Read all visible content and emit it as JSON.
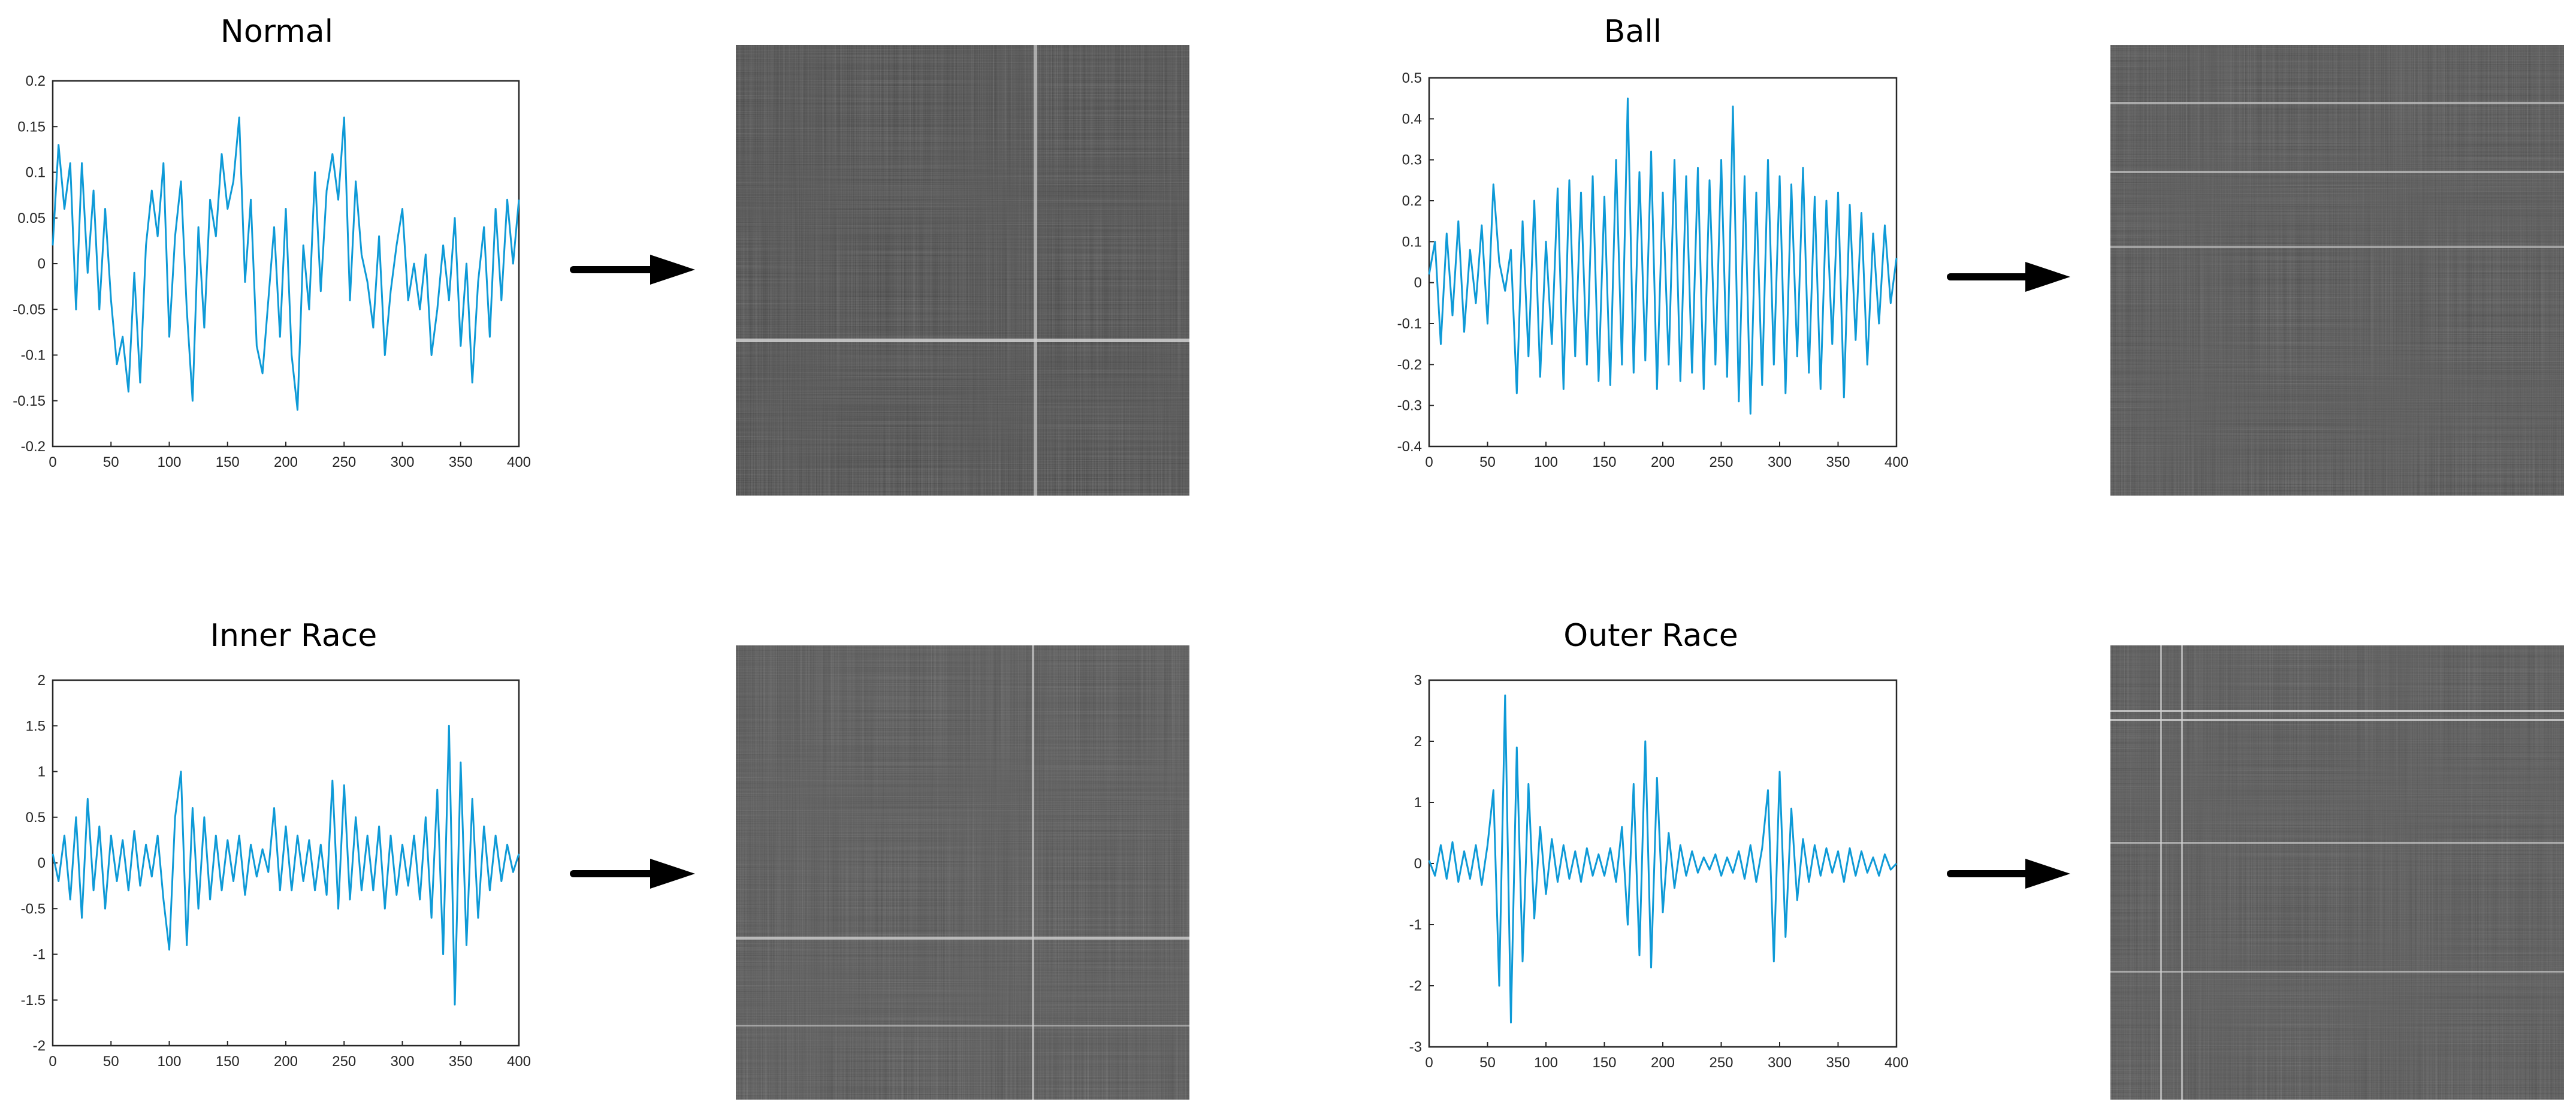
{
  "chart_data": [
    {
      "type": "line",
      "title": "Normal",
      "xlim": [
        0,
        400
      ],
      "ylim": [
        -0.2,
        0.2
      ],
      "xticks": [
        "0",
        "50",
        "100",
        "150",
        "200",
        "250",
        "300",
        "350",
        "400"
      ],
      "yticks": [
        "0.2",
        "0.15",
        "0.1",
        "0.05",
        "0",
        "-0.05",
        "-0.1",
        "-0.15",
        "-0.2"
      ],
      "grid": false,
      "series": [
        {
          "color": "#0e9ad7",
          "x": [
            0,
            5,
            10,
            15,
            20,
            25,
            30,
            35,
            40,
            45,
            50,
            55,
            60,
            65,
            70,
            75,
            80,
            85,
            90,
            95,
            100,
            105,
            110,
            115,
            120,
            125,
            130,
            135,
            140,
            145,
            150,
            155,
            160,
            165,
            170,
            175,
            180,
            185,
            190,
            195,
            200,
            205,
            210,
            215,
            220,
            225,
            230,
            235,
            240,
            245,
            250,
            255,
            260,
            265,
            270,
            275,
            280,
            285,
            290,
            295,
            300,
            305,
            310,
            315,
            320,
            325,
            330,
            335,
            340,
            345,
            350,
            355,
            360,
            365,
            370,
            375,
            380,
            385,
            390,
            395,
            400
          ],
          "y": [
            0.02,
            0.13,
            0.06,
            0.11,
            -0.05,
            0.11,
            -0.01,
            0.08,
            -0.05,
            0.06,
            -0.04,
            -0.11,
            -0.08,
            -0.14,
            -0.01,
            -0.13,
            0.02,
            0.08,
            0.03,
            0.11,
            -0.08,
            0.03,
            0.09,
            -0.05,
            -0.15,
            0.04,
            -0.07,
            0.07,
            0.03,
            0.12,
            0.06,
            0.09,
            0.16,
            -0.02,
            0.07,
            -0.09,
            -0.12,
            -0.04,
            0.04,
            -0.08,
            0.06,
            -0.1,
            -0.16,
            0.02,
            -0.05,
            0.1,
            -0.03,
            0.08,
            0.12,
            0.07,
            0.16,
            -0.04,
            0.09,
            0.01,
            -0.02,
            -0.07,
            0.03,
            -0.1,
            -0.03,
            0.02,
            0.06,
            -0.04,
            0.0,
            -0.05,
            0.01,
            -0.1,
            -0.05,
            0.02,
            -0.04,
            0.05,
            -0.09,
            0.0,
            -0.13,
            -0.02,
            0.04,
            -0.08,
            0.06,
            -0.04,
            0.07,
            0.0,
            0.07
          ]
        }
      ]
    },
    {
      "type": "line",
      "title": "Ball",
      "xlim": [
        0,
        400
      ],
      "ylim": [
        -0.4,
        0.5
      ],
      "xticks": [
        "0",
        "50",
        "100",
        "150",
        "200",
        "250",
        "300",
        "350",
        "400"
      ],
      "yticks": [
        "0.5",
        "0.4",
        "0.3",
        "0.2",
        "0.1",
        "0",
        "-0.1",
        "-0.2",
        "-0.3",
        "-0.4"
      ],
      "grid": false,
      "series": [
        {
          "color": "#0e9ad7",
          "x": [
            0,
            5,
            10,
            15,
            20,
            25,
            30,
            35,
            40,
            45,
            50,
            55,
            60,
            65,
            70,
            75,
            80,
            85,
            90,
            95,
            100,
            105,
            110,
            115,
            120,
            125,
            130,
            135,
            140,
            145,
            150,
            155,
            160,
            165,
            170,
            175,
            180,
            185,
            190,
            195,
            200,
            205,
            210,
            215,
            220,
            225,
            230,
            235,
            240,
            245,
            250,
            255,
            260,
            265,
            270,
            275,
            280,
            285,
            290,
            295,
            300,
            305,
            310,
            315,
            320,
            325,
            330,
            335,
            340,
            345,
            350,
            355,
            360,
            365,
            370,
            375,
            380,
            385,
            390,
            395,
            400
          ],
          "y": [
            0.02,
            0.1,
            -0.15,
            0.12,
            -0.08,
            0.15,
            -0.12,
            0.08,
            -0.05,
            0.14,
            -0.1,
            0.24,
            0.05,
            -0.02,
            0.08,
            -0.27,
            0.15,
            -0.18,
            0.2,
            -0.23,
            0.1,
            -0.15,
            0.23,
            -0.26,
            0.25,
            -0.18,
            0.22,
            -0.2,
            0.26,
            -0.24,
            0.21,
            -0.25,
            0.3,
            -0.2,
            0.45,
            -0.22,
            0.27,
            -0.19,
            0.32,
            -0.26,
            0.22,
            -0.2,
            0.3,
            -0.24,
            0.26,
            -0.22,
            0.28,
            -0.26,
            0.25,
            -0.2,
            0.3,
            -0.23,
            0.43,
            -0.29,
            0.26,
            -0.32,
            0.22,
            -0.25,
            0.3,
            -0.2,
            0.26,
            -0.27,
            0.24,
            -0.18,
            0.28,
            -0.22,
            0.21,
            -0.26,
            0.2,
            -0.15,
            0.22,
            -0.28,
            0.19,
            -0.14,
            0.17,
            -0.2,
            0.12,
            -0.1,
            0.14,
            -0.05,
            0.06
          ]
        }
      ]
    },
    {
      "type": "line",
      "title": "Inner Race",
      "xlim": [
        0,
        400
      ],
      "ylim": [
        -2,
        2
      ],
      "xticks": [
        "0",
        "50",
        "100",
        "150",
        "200",
        "250",
        "300",
        "350",
        "400"
      ],
      "yticks": [
        "2",
        "1.5",
        "1",
        "0.5",
        "0",
        "-0.5",
        "-1",
        "-1.5",
        "-2"
      ],
      "grid": false,
      "series": [
        {
          "color": "#0e9ad7",
          "x": [
            0,
            5,
            10,
            15,
            20,
            25,
            30,
            35,
            40,
            45,
            50,
            55,
            60,
            65,
            70,
            75,
            80,
            85,
            90,
            95,
            100,
            105,
            110,
            115,
            120,
            125,
            130,
            135,
            140,
            145,
            150,
            155,
            160,
            165,
            170,
            175,
            180,
            185,
            190,
            195,
            200,
            205,
            210,
            215,
            220,
            225,
            230,
            235,
            240,
            245,
            250,
            255,
            260,
            265,
            270,
            275,
            280,
            285,
            290,
            295,
            300,
            305,
            310,
            315,
            320,
            325,
            330,
            335,
            340,
            345,
            350,
            355,
            360,
            365,
            370,
            375,
            380,
            385,
            390,
            395,
            400
          ],
          "y": [
            0.1,
            -0.2,
            0.3,
            -0.4,
            0.5,
            -0.6,
            0.7,
            -0.3,
            0.4,
            -0.5,
            0.3,
            -0.2,
            0.25,
            -0.3,
            0.35,
            -0.25,
            0.2,
            -0.15,
            0.3,
            -0.4,
            -0.95,
            0.5,
            1.0,
            -0.9,
            0.6,
            -0.5,
            0.5,
            -0.4,
            0.3,
            -0.3,
            0.25,
            -0.2,
            0.3,
            -0.35,
            0.2,
            -0.15,
            0.15,
            -0.1,
            0.6,
            -0.3,
            0.4,
            -0.3,
            0.3,
            -0.2,
            0.25,
            -0.3,
            0.2,
            -0.35,
            0.9,
            -0.5,
            0.85,
            -0.4,
            0.5,
            -0.3,
            0.3,
            -0.3,
            0.4,
            -0.5,
            0.3,
            -0.35,
            0.2,
            -0.25,
            0.3,
            -0.4,
            0.5,
            -0.6,
            0.8,
            -1.0,
            1.5,
            -1.55,
            1.1,
            -0.9,
            0.7,
            -0.6,
            0.4,
            -0.3,
            0.3,
            -0.2,
            0.2,
            -0.1,
            0.1
          ]
        }
      ]
    },
    {
      "type": "line",
      "title": "Outer Race",
      "xlim": [
        0,
        400
      ],
      "ylim": [
        -3,
        3
      ],
      "xticks": [
        "0",
        "50",
        "100",
        "150",
        "200",
        "250",
        "300",
        "350",
        "400"
      ],
      "yticks": [
        "3",
        "2",
        "1",
        "0",
        "-1",
        "-2",
        "-3"
      ],
      "grid": false,
      "series": [
        {
          "color": "#0e9ad7",
          "x": [
            0,
            5,
            10,
            15,
            20,
            25,
            30,
            35,
            40,
            45,
            50,
            55,
            60,
            65,
            70,
            75,
            80,
            85,
            90,
            95,
            100,
            105,
            110,
            115,
            120,
            125,
            130,
            135,
            140,
            145,
            150,
            155,
            160,
            165,
            170,
            175,
            180,
            185,
            190,
            195,
            200,
            205,
            210,
            215,
            220,
            225,
            230,
            235,
            240,
            245,
            250,
            255,
            260,
            265,
            270,
            275,
            280,
            285,
            290,
            295,
            300,
            305,
            310,
            315,
            320,
            325,
            330,
            335,
            340,
            345,
            350,
            355,
            360,
            365,
            370,
            375,
            380,
            385,
            390,
            395,
            400
          ],
          "y": [
            0.05,
            -0.2,
            0.3,
            -0.25,
            0.35,
            -0.3,
            0.2,
            -0.25,
            0.3,
            -0.35,
            0.3,
            1.2,
            -2.0,
            2.75,
            -2.6,
            1.9,
            -1.6,
            1.3,
            -0.9,
            0.6,
            -0.5,
            0.4,
            -0.3,
            0.3,
            -0.25,
            0.2,
            -0.3,
            0.25,
            -0.2,
            0.15,
            -0.2,
            0.25,
            -0.3,
            0.6,
            -1.0,
            1.3,
            -1.5,
            2.0,
            -1.7,
            1.4,
            -0.8,
            0.5,
            -0.4,
            0.3,
            -0.2,
            0.2,
            -0.15,
            0.1,
            -0.1,
            0.15,
            -0.2,
            0.1,
            -0.15,
            0.2,
            -0.25,
            0.3,
            -0.3,
            0.25,
            1.2,
            -1.6,
            1.5,
            -1.2,
            0.9,
            -0.6,
            0.4,
            -0.3,
            0.3,
            -0.2,
            0.25,
            -0.15,
            0.2,
            -0.3,
            0.25,
            -0.2,
            0.2,
            -0.15,
            0.1,
            -0.2,
            0.15,
            -0.1,
            0.0
          ]
        }
      ]
    }
  ]
}
